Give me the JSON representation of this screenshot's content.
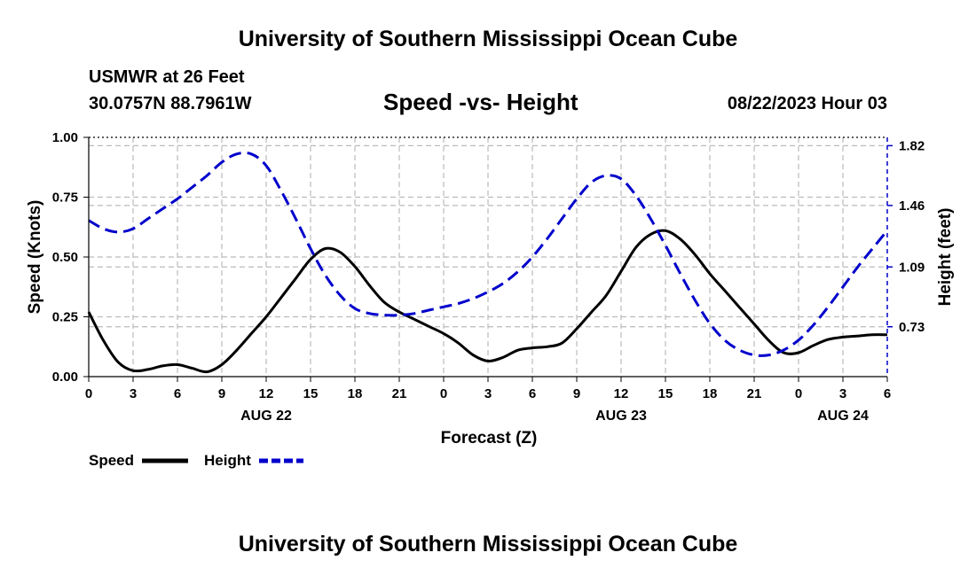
{
  "header": {
    "title": "University of Southern Mississippi Ocean Cube",
    "station": "USMWR at 26 Feet",
    "coords": "30.0757N  88.7961W",
    "subtitle": "Speed -vs- Height",
    "datetime": "08/22/2023 Hour 03",
    "repeat_title": "University of Southern Mississippi Ocean Cube"
  },
  "chart_data": {
    "type": "line",
    "xlabel": "Forecast (Z)",
    "x_ticks": [
      "0",
      "3",
      "6",
      "9",
      "12",
      "15",
      "18",
      "21",
      "0",
      "3",
      "6",
      "9",
      "12",
      "15",
      "18",
      "21",
      "0",
      "3",
      "6"
    ],
    "date_labels": [
      {
        "label": "AUG 22",
        "hour": 12
      },
      {
        "label": "AUG 23",
        "hour": 36
      },
      {
        "label": "AUG 24",
        "hour": 51
      }
    ],
    "xlim": [
      0,
      54
    ],
    "y_left": {
      "label": "Speed (Knots)",
      "ticks": [
        "0.00",
        "0.25",
        "0.50",
        "0.75",
        "1.00"
      ],
      "lim": [
        0,
        1
      ]
    },
    "y_right": {
      "label": "Height (feet)",
      "ticks": [
        "0.73",
        "1.09",
        "1.46",
        "1.82"
      ],
      "tick_values": [
        0.73,
        1.09,
        1.46,
        1.82
      ],
      "lim": [
        0.43,
        1.87
      ]
    },
    "series": [
      {
        "name": "Speed",
        "axis": "left",
        "color": "#000000",
        "style": "solid",
        "x": [
          0,
          1,
          2,
          3,
          4,
          5,
          6,
          7,
          8,
          9,
          10,
          11,
          12,
          13,
          14,
          15,
          16,
          17,
          18,
          19,
          20,
          21,
          22,
          23,
          24,
          25,
          26,
          27,
          28,
          29,
          30,
          31,
          32,
          33,
          34,
          35,
          36,
          37,
          38,
          39,
          40,
          41,
          42,
          43,
          44,
          45,
          46,
          47,
          48,
          49,
          50,
          51,
          52,
          53,
          54
        ],
        "values": [
          0.27,
          0.15,
          0.06,
          0.025,
          0.03,
          0.045,
          0.05,
          0.035,
          0.02,
          0.05,
          0.11,
          0.18,
          0.25,
          0.33,
          0.41,
          0.49,
          0.535,
          0.52,
          0.46,
          0.38,
          0.31,
          0.27,
          0.24,
          0.21,
          0.18,
          0.14,
          0.09,
          0.065,
          0.08,
          0.11,
          0.12,
          0.125,
          0.14,
          0.2,
          0.27,
          0.34,
          0.44,
          0.54,
          0.595,
          0.61,
          0.575,
          0.51,
          0.43,
          0.36,
          0.29,
          0.22,
          0.15,
          0.1,
          0.1,
          0.13,
          0.155,
          0.165,
          0.17,
          0.175,
          0.175
        ]
      },
      {
        "name": "Height",
        "axis": "right",
        "color": "#0000cc",
        "style": "dashed",
        "x": [
          0,
          1,
          2,
          3,
          4,
          5,
          6,
          7,
          8,
          9,
          10,
          11,
          12,
          13,
          14,
          15,
          16,
          17,
          18,
          19,
          20,
          21,
          22,
          23,
          24,
          25,
          26,
          27,
          28,
          29,
          30,
          31,
          32,
          33,
          34,
          35,
          36,
          37,
          38,
          39,
          40,
          41,
          42,
          43,
          44,
          45,
          46,
          47,
          48,
          49,
          50,
          51,
          52,
          53,
          54
        ],
        "values": [
          1.37,
          1.32,
          1.3,
          1.32,
          1.38,
          1.44,
          1.5,
          1.57,
          1.64,
          1.72,
          1.77,
          1.77,
          1.7,
          1.55,
          1.38,
          1.2,
          1.04,
          0.92,
          0.84,
          0.81,
          0.8,
          0.8,
          0.81,
          0.83,
          0.85,
          0.87,
          0.9,
          0.94,
          0.99,
          1.06,
          1.15,
          1.26,
          1.38,
          1.5,
          1.6,
          1.64,
          1.62,
          1.52,
          1.38,
          1.22,
          1.05,
          0.89,
          0.75,
          0.65,
          0.59,
          0.56,
          0.56,
          0.59,
          0.65,
          0.74,
          0.85,
          0.97,
          1.09,
          1.2,
          1.31
        ]
      }
    ],
    "legend": {
      "position": "bottom-left",
      "items": [
        "Speed",
        "Height"
      ]
    }
  }
}
